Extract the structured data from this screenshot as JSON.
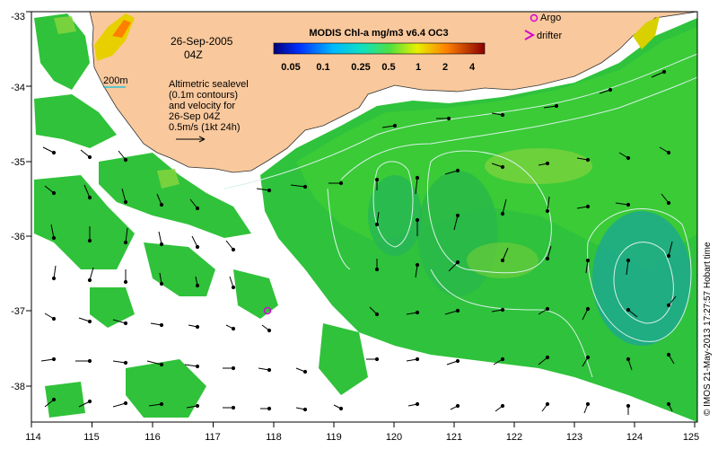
{
  "map": {
    "date": "26-Sep-2005",
    "time": "04Z",
    "contour_label": "200m",
    "annotation": [
      "Altimetric sealevel",
      "(0.1m contours)",
      "and velocity for",
      "26-Sep 04Z",
      "0.5m/s (1kt 24h)"
    ],
    "credit": "© IMOS 21-May-2013 17:27:57 Hobart time",
    "legend": {
      "title": "MODIS Chl-a mg/m3 v6.4 OC3",
      "ticks": [
        "0.05",
        "0.1",
        "0.25",
        "0.5",
        "1",
        "2",
        "4"
      ]
    },
    "markers": {
      "argo": "Argo",
      "drifter": "drifter"
    },
    "x_ticks": [
      "114",
      "115",
      "116",
      "117",
      "118",
      "119",
      "120",
      "121",
      "122",
      "123",
      "124",
      "125"
    ],
    "y_ticks": [
      "-33",
      "-34",
      "-35",
      "-36",
      "-37",
      "-38"
    ],
    "colors": {
      "land": "#f9c89c",
      "land_edge": "#333333",
      "chl_low": "#00b0a0",
      "chl_mid": "#2bc43a",
      "chl_high": "#8ad640",
      "marker": "#d800d8",
      "contour": "#d8f0e8"
    }
  }
}
